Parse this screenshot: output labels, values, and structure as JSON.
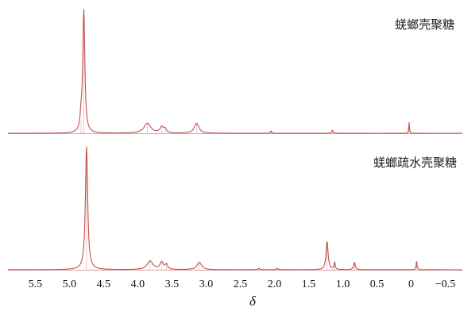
{
  "chart_data": [
    {
      "type": "line",
      "series": [
        {
          "name": "蜣螂壳聚糖",
          "peaks": [
            {
              "x": 4.79,
              "height": 1.0,
              "width": 0.018
            },
            {
              "x": 4.83,
              "height": 0.1,
              "width": 0.015
            },
            {
              "x": 3.86,
              "height": 0.08,
              "width": 0.06
            },
            {
              "x": 3.65,
              "height": 0.05,
              "width": 0.03
            },
            {
              "x": 3.6,
              "height": 0.03,
              "width": 0.02
            },
            {
              "x": 3.14,
              "height": 0.08,
              "width": 0.04
            },
            {
              "x": 2.05,
              "height": 0.02,
              "width": 0.01
            },
            {
              "x": 1.15,
              "height": 0.025,
              "width": 0.012
            },
            {
              "x": 0.03,
              "height": 0.09,
              "width": 0.006
            }
          ]
        },
        {
          "name": "蜣螂疏水壳聚糖",
          "peaks": [
            {
              "x": 4.75,
              "height": 1.0,
              "width": 0.02
            },
            {
              "x": 3.82,
              "height": 0.07,
              "width": 0.05
            },
            {
              "x": 3.65,
              "height": 0.06,
              "width": 0.03
            },
            {
              "x": 3.58,
              "height": 0.04,
              "width": 0.02
            },
            {
              "x": 3.1,
              "height": 0.06,
              "width": 0.04
            },
            {
              "x": 2.23,
              "height": 0.01,
              "width": 0.02
            },
            {
              "x": 1.96,
              "height": 0.01,
              "width": 0.02
            },
            {
              "x": 1.23,
              "height": 0.23,
              "width": 0.018
            },
            {
              "x": 1.12,
              "height": 0.06,
              "width": 0.01
            },
            {
              "x": 0.83,
              "height": 0.06,
              "width": 0.015
            },
            {
              "x": -0.08,
              "height": 0.07,
              "width": 0.008
            }
          ]
        }
      ],
      "xlabel": "δ",
      "xlim": [
        5.9,
        -0.75
      ],
      "xticks": [
        "5.5",
        "5.0",
        "4.5",
        "4.0",
        "3.5",
        "3.0",
        "2.5",
        "2.0",
        "1.5",
        "1.0",
        "0.5",
        "0",
        "−0.5"
      ],
      "xtick_values": [
        5.5,
        5.0,
        4.5,
        4.0,
        3.5,
        3.0,
        2.5,
        2.0,
        1.5,
        1.0,
        0.5,
        0,
        -0.5
      ],
      "line_color": "#c0504d",
      "baseline_color": "#d9a0a0"
    }
  ]
}
